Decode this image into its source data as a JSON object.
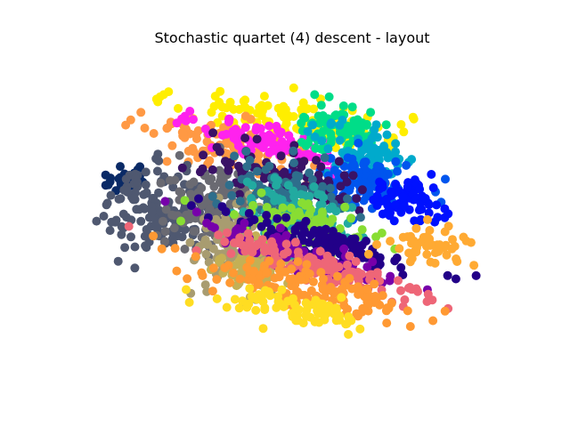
{
  "chart_data": {
    "type": "scatter",
    "title": "Stochastic quartet (4) descent - layout",
    "xlabel": "",
    "ylabel": "",
    "axes_visible": false,
    "grid": false,
    "legend": "none",
    "colormap": "gist_ncar",
    "clusters": [
      {
        "name": "yellow rim (upper)",
        "color": "#ffee00",
        "center": [
          -0.03,
          0.62
        ],
        "spread": [
          0.3,
          0.08
        ],
        "angle_deg": -12,
        "n": 120
      },
      {
        "name": "orange-pink band",
        "color": "#ff9944",
        "center": [
          -0.28,
          0.42
        ],
        "spread": [
          0.24,
          0.08
        ],
        "angle_deg": -22,
        "n": 110
      },
      {
        "name": "magenta band",
        "color": "#ff22ee",
        "center": [
          -0.07,
          0.44
        ],
        "spread": [
          0.2,
          0.06
        ],
        "angle_deg": -22,
        "n": 100
      },
      {
        "name": "green-teal cap",
        "color": "#00dd88",
        "center": [
          0.24,
          0.55
        ],
        "spread": [
          0.12,
          0.08
        ],
        "angle_deg": 0,
        "n": 80
      },
      {
        "name": "teal",
        "color": "#00aacc",
        "center": [
          0.38,
          0.38
        ],
        "spread": [
          0.12,
          0.09
        ],
        "angle_deg": -10,
        "n": 80
      },
      {
        "name": "blue",
        "color": "#0055ee",
        "center": [
          0.37,
          0.2
        ],
        "spread": [
          0.13,
          0.08
        ],
        "angle_deg": -10,
        "n": 110
      },
      {
        "name": "deep blue",
        "color": "#0011ff",
        "center": [
          0.56,
          0.07
        ],
        "spread": [
          0.09,
          0.07
        ],
        "angle_deg": 0,
        "n": 70
      },
      {
        "name": "navy tip",
        "color": "#0a2a66",
        "center": [
          -0.82,
          0.22
        ],
        "spread": [
          0.06,
          0.05
        ],
        "angle_deg": 0,
        "n": 25
      },
      {
        "name": "slate gray",
        "color": "#4f5870",
        "center": [
          -0.64,
          0.02
        ],
        "spread": [
          0.14,
          0.14
        ],
        "angle_deg": 0,
        "n": 150
      },
      {
        "name": "gray",
        "color": "#6a6a72",
        "center": [
          -0.4,
          0.03
        ],
        "spread": [
          0.12,
          0.14
        ],
        "angle_deg": 0,
        "n": 120
      },
      {
        "name": "khaki",
        "color": "#a89c70",
        "center": [
          -0.28,
          -0.22
        ],
        "spread": [
          0.1,
          0.14
        ],
        "angle_deg": 0,
        "n": 120
      },
      {
        "name": "olive tan",
        "color": "#c4b055",
        "center": [
          -0.2,
          -0.36
        ],
        "spread": [
          0.09,
          0.09
        ],
        "angle_deg": 0,
        "n": 60
      },
      {
        "name": "dark purple band",
        "color": "#3a1266",
        "center": [
          -0.03,
          0.23
        ],
        "spread": [
          0.2,
          0.08
        ],
        "angle_deg": -22,
        "n": 110
      },
      {
        "name": "slate teal",
        "color": "#2e6e8c",
        "center": [
          -0.05,
          0.12
        ],
        "spread": [
          0.16,
          0.09
        ],
        "angle_deg": -22,
        "n": 100
      },
      {
        "name": "teal center",
        "color": "#22aaa0",
        "center": [
          0.02,
          0.0
        ],
        "spread": [
          0.15,
          0.09
        ],
        "angle_deg": -22,
        "n": 100
      },
      {
        "name": "lime green",
        "color": "#88dd33",
        "center": [
          0.07,
          -0.1
        ],
        "spread": [
          0.15,
          0.07
        ],
        "angle_deg": -22,
        "n": 90
      },
      {
        "name": "deep indigo band",
        "color": "#220088",
        "center": [
          0.16,
          -0.2
        ],
        "spread": [
          0.26,
          0.05
        ],
        "angle_deg": -22,
        "n": 110
      },
      {
        "name": "purple band",
        "color": "#7700aa",
        "center": [
          0.05,
          -0.29
        ],
        "spread": [
          0.28,
          0.05
        ],
        "angle_deg": -22,
        "n": 110
      },
      {
        "name": "salmon band",
        "color": "#ee6677",
        "center": [
          0.12,
          -0.37
        ],
        "spread": [
          0.3,
          0.06
        ],
        "angle_deg": -20,
        "n": 120
      },
      {
        "name": "orange band",
        "color": "#ff9933",
        "center": [
          0.06,
          -0.5
        ],
        "spread": [
          0.3,
          0.07
        ],
        "angle_deg": -18,
        "n": 130
      },
      {
        "name": "yellow rim (lower)",
        "color": "#ffdd22",
        "center": [
          0.0,
          -0.64
        ],
        "spread": [
          0.22,
          0.05
        ],
        "angle_deg": -14,
        "n": 80
      },
      {
        "name": "orange right tip",
        "color": "#ffaa33",
        "center": [
          0.68,
          -0.22
        ],
        "spread": [
          0.1,
          0.06
        ],
        "angle_deg": 0,
        "n": 50
      }
    ]
  }
}
